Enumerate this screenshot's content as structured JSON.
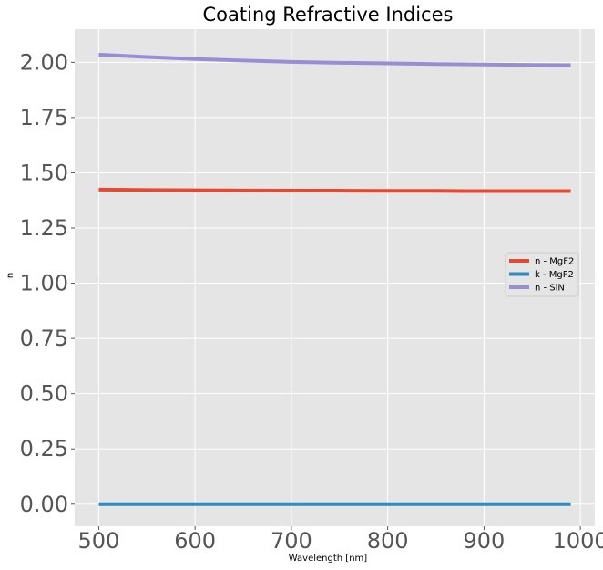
{
  "chart_data": {
    "type": "line",
    "title": "Coating Refractive Indices",
    "xlabel": "Wavelength [nm]",
    "ylabel": "n",
    "xlim": [
      475,
      1015
    ],
    "ylim": [
      -0.1,
      2.15
    ],
    "xticks": [
      500,
      600,
      700,
      800,
      900,
      1000
    ],
    "xtick_labels": [
      "500",
      "600",
      "700",
      "800",
      "900",
      "1000"
    ],
    "yticks": [
      0.0,
      0.25,
      0.5,
      0.75,
      1.0,
      1.25,
      1.5,
      1.75,
      2.0
    ],
    "ytick_labels": [
      "0.00",
      "0.25",
      "0.50",
      "0.75",
      "1.00",
      "1.25",
      "1.50",
      "1.75",
      "2.00"
    ],
    "grid": true,
    "legend_position": "center-right",
    "background": "#e5e5e5",
    "grid_color": "#ffffff",
    "series": [
      {
        "name": "n - MgF2",
        "color": "#e24a33",
        "x": [
          500,
          550,
          600,
          650,
          700,
          750,
          800,
          850,
          900,
          950,
          990
        ],
        "y": [
          1.424,
          1.422,
          1.421,
          1.42,
          1.419,
          1.419,
          1.418,
          1.418,
          1.417,
          1.417,
          1.417
        ]
      },
      {
        "name": "k - MgF2",
        "color": "#348abd",
        "x": [
          500,
          550,
          600,
          650,
          700,
          750,
          800,
          850,
          900,
          950,
          990
        ],
        "y": [
          0,
          0,
          0,
          0,
          0,
          0,
          0,
          0,
          0,
          0,
          0
        ]
      },
      {
        "name": "n - SiN",
        "color": "#988ed5",
        "x": [
          500,
          550,
          600,
          650,
          700,
          750,
          800,
          850,
          900,
          950,
          990
        ],
        "y": [
          2.035,
          2.024,
          2.015,
          2.008,
          2.002,
          1.998,
          1.995,
          1.992,
          1.99,
          1.988,
          1.987
        ]
      }
    ]
  }
}
